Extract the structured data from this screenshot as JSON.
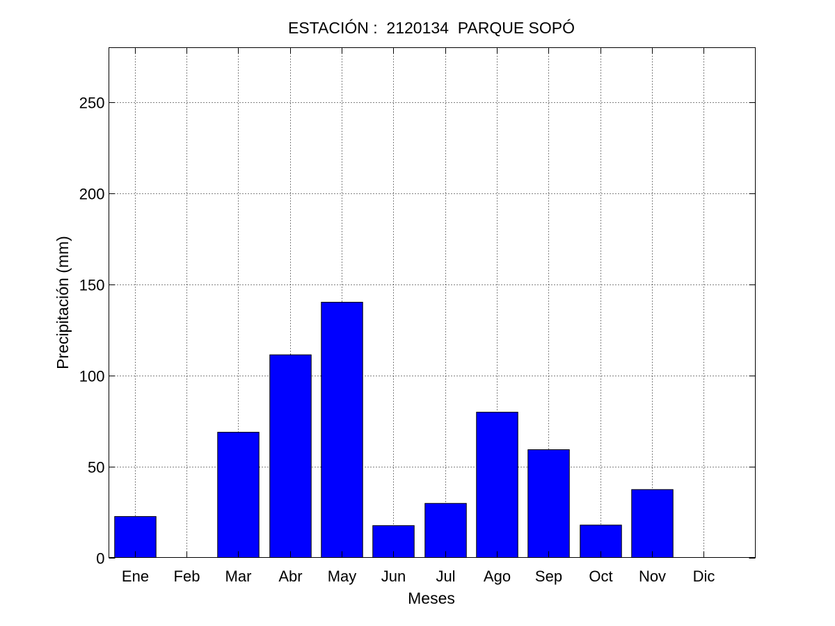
{
  "chart_data": {
    "type": "bar",
    "title": "ESTACIÓN :  2120134  PARQUE SOPÓ",
    "xlabel": "Meses",
    "ylabel": "Precipitación (mm)",
    "categories": [
      "Ene",
      "Feb",
      "Mar",
      "Abr",
      "May",
      "Jun",
      "Jul",
      "Ago",
      "Sep",
      "Oct",
      "Nov",
      "Dic"
    ],
    "values": [
      22.5,
      0,
      68.8,
      111.3,
      140.2,
      17.5,
      29.7,
      79.8,
      59.2,
      17.8,
      37.3,
      0
    ],
    "ylim": [
      0,
      280
    ],
    "yticks": [
      0,
      50,
      100,
      150,
      200,
      250
    ],
    "grid": true,
    "bar_color": "#0000ff"
  }
}
